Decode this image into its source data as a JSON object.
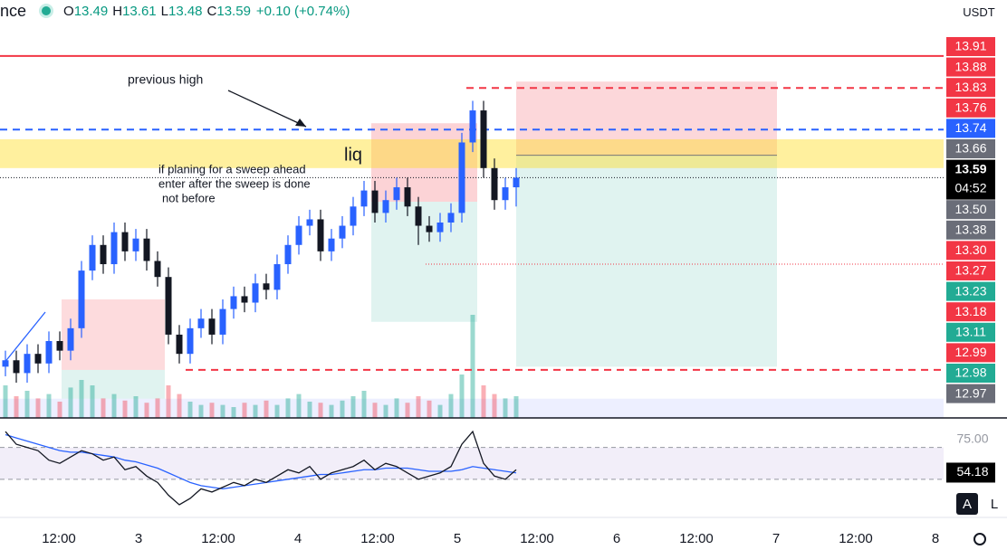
{
  "header": {
    "symbol": "nce",
    "ohlc": [
      {
        "key": "O",
        "value": 13.49
      },
      {
        "key": "H",
        "value": 13.61
      },
      {
        "key": "L",
        "value": 13.48
      },
      {
        "key": "C",
        "value": 13.59
      }
    ],
    "change": "+0.10 (+0.74%)",
    "currency": "USDT"
  },
  "chart_data": {
    "type": "candlestick",
    "annotations": [
      "previous high",
      "liq",
      "if planing for a sweep ahead",
      "enter after the sweep  is done",
      "not before"
    ],
    "ylim": [
      12.84,
      14.06
    ],
    "up_color": "#2962ff",
    "down_color": "#131722",
    "open": [
      13.0,
      13.02,
      12.98,
      13.04,
      13.01,
      13.08,
      13.05,
      13.12,
      13.3,
      13.38,
      13.32,
      13.42,
      13.36,
      13.4,
      13.33,
      13.28,
      13.1,
      13.04,
      13.12,
      13.15,
      13.1,
      13.18,
      13.22,
      13.2,
      13.26,
      13.24,
      13.32,
      13.38,
      13.44,
      13.46,
      13.36,
      13.4,
      13.44,
      13.5,
      13.55,
      13.48,
      13.52,
      13.56,
      13.5,
      13.44,
      13.42,
      13.45,
      13.48,
      13.7,
      13.8,
      13.62,
      13.52,
      13.56
    ],
    "high": [
      13.05,
      13.05,
      13.07,
      13.07,
      13.11,
      13.11,
      13.15,
      13.33,
      13.41,
      13.41,
      13.45,
      13.45,
      13.43,
      13.43,
      13.36,
      13.31,
      13.13,
      13.15,
      13.18,
      13.18,
      13.21,
      13.25,
      13.25,
      13.29,
      13.29,
      13.35,
      13.41,
      13.47,
      13.49,
      13.49,
      13.43,
      13.47,
      13.53,
      13.58,
      13.58,
      13.55,
      13.59,
      13.59,
      13.53,
      13.47,
      13.48,
      13.51,
      13.73,
      13.83,
      13.83,
      13.65,
      13.59,
      13.62
    ],
    "low": [
      12.97,
      12.95,
      12.95,
      12.98,
      12.98,
      13.02,
      13.02,
      13.09,
      13.27,
      13.29,
      13.29,
      13.33,
      13.33,
      13.3,
      13.25,
      13.07,
      13.01,
      13.01,
      13.09,
      13.07,
      13.07,
      13.15,
      13.17,
      13.17,
      13.21,
      13.21,
      13.29,
      13.35,
      13.41,
      13.33,
      13.33,
      13.37,
      13.41,
      13.47,
      13.45,
      13.45,
      13.49,
      13.47,
      13.38,
      13.39,
      13.39,
      13.42,
      13.45,
      13.67,
      13.59,
      13.49,
      13.49,
      13.5
    ],
    "close": [
      13.02,
      12.98,
      13.04,
      13.01,
      13.08,
      13.05,
      13.12,
      13.3,
      13.38,
      13.32,
      13.42,
      13.36,
      13.4,
      13.33,
      13.28,
      13.1,
      13.04,
      13.12,
      13.15,
      13.1,
      13.18,
      13.22,
      13.2,
      13.26,
      13.24,
      13.32,
      13.38,
      13.44,
      13.46,
      13.36,
      13.4,
      13.44,
      13.5,
      13.55,
      13.48,
      13.52,
      13.56,
      13.5,
      13.44,
      13.42,
      13.45,
      13.48,
      13.7,
      13.8,
      13.62,
      13.52,
      13.56,
      13.59
    ],
    "volume": [
      30,
      20,
      25,
      18,
      22,
      15,
      28,
      35,
      30,
      18,
      22,
      16,
      20,
      14,
      18,
      30,
      22,
      15,
      12,
      14,
      12,
      10,
      14,
      12,
      16,
      12,
      18,
      22,
      15,
      14,
      12,
      16,
      20,
      25,
      14,
      12,
      18,
      14,
      20,
      16,
      12,
      22,
      40,
      95,
      30,
      22,
      18,
      20
    ],
    "volume_lim": [
      0,
      100
    ],
    "zones": [
      {
        "top": 13.76,
        "bottom": 13.515,
        "color": "rgba(242,54,69,0.22)"
      },
      {
        "top": 13.515,
        "bottom": 13.14,
        "color": "rgba(34,171,148,0.14)"
      },
      {
        "top": 13.89,
        "bottom": 13.66,
        "color": "rgba(242,54,69,0.2)"
      },
      {
        "top": 13.66,
        "bottom": 13.0,
        "color": "rgba(34,171,148,0.14)"
      },
      {
        "top": 13.21,
        "bottom": 12.99,
        "color": "rgba(242,54,69,0.18)"
      },
      {
        "top": 12.99,
        "bottom": 12.9,
        "color": "rgba(34,171,148,0.14)"
      },
      {
        "top": 13.71,
        "bottom": 13.62,
        "color": "rgba(255,222,40,0.45)"
      },
      {
        "top": 12.9,
        "bottom": 12.84,
        "color": "rgba(110,120,255,0.12)"
      }
    ],
    "hlines": [
      {
        "value": 13.97,
        "color": "#f23645",
        "style": "solid"
      },
      {
        "value": 13.87,
        "color": "#f23645",
        "style": "dashed"
      },
      {
        "value": 13.74,
        "color": "#2962ff",
        "style": "dashed"
      },
      {
        "value": 12.99,
        "color": "#f23645",
        "style": "dashed"
      },
      {
        "value": 13.32,
        "color": "#f23645",
        "style": "dotted"
      },
      {
        "value": 13.59,
        "color": "#131722",
        "style": "dotted"
      }
    ],
    "price_labels": [
      13.91,
      13.88,
      13.83,
      13.76,
      13.74,
      13.66,
      13.59,
      {
        "value": 13.5,
        "label": "13.50"
      },
      13.38,
      {
        "value": 13.3,
        "label": "13.30"
      },
      13.27,
      13.23,
      13.18,
      13.11,
      12.99,
      12.98,
      12.97
    ],
    "price_label_colors": [
      "#f23645",
      "#f23645",
      "#f23645",
      "#f23645",
      "#2962ff",
      "#6a6d78",
      "#000000",
      "#6a6d78",
      "#6a6d78",
      "#f23645",
      "#f23645",
      "#22ab94",
      "#f23645",
      "#22ab94",
      "#f23645",
      "#22ab94",
      "#6a6d78"
    ],
    "countdown": "04:52",
    "rsi": [
      80,
      72,
      70,
      68,
      62,
      60,
      64,
      68,
      66,
      62,
      64,
      56,
      58,
      52,
      48,
      40,
      34,
      38,
      44,
      42,
      45,
      48,
      46,
      50,
      48,
      52,
      56,
      54,
      58,
      50,
      54,
      56,
      58,
      62,
      56,
      60,
      58,
      54,
      50,
      52,
      54,
      58,
      72,
      80,
      60,
      52,
      50,
      56
    ],
    "rsi_ma": [
      78,
      76,
      74,
      72,
      70,
      68,
      67,
      67,
      66,
      65,
      64,
      62,
      61,
      59,
      57,
      54,
      51,
      48,
      46,
      45,
      44,
      45,
      46,
      47,
      48,
      49,
      50,
      51,
      52,
      53,
      53,
      54,
      55,
      56,
      56,
      57,
      57,
      57,
      56,
      55,
      55,
      55,
      56,
      58,
      57,
      56,
      55,
      54
    ],
    "rsi_ylim": [
      30,
      84
    ],
    "rsi_band": [
      70,
      50
    ],
    "rsi_labels": [
      {
        "value": 75,
        "label": "75.00"
      },
      54.18
    ],
    "x_labels": [
      "12:00",
      "3",
      "12:00",
      "4",
      "12:00",
      "5",
      "12:00",
      "6",
      "12:00",
      "7",
      "12:00",
      "8"
    ],
    "scale_buttons": [
      "A",
      "L"
    ]
  }
}
